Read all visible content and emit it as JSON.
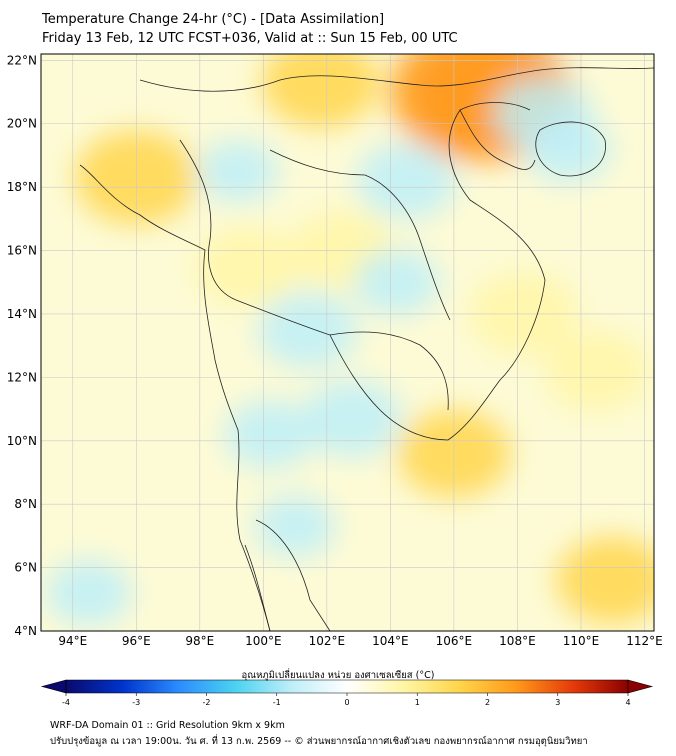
{
  "title_line1": "Temperature Change 24-hr (°C) - [Data Assimilation]",
  "title_line2": "Friday 13 Feb, 12 UTC FCST+036, Valid at :: Sun 15 Feb, 00 UTC",
  "lat_labels": [
    "4°N",
    "6°N",
    "8°N",
    "10°N",
    "12°N",
    "14°N",
    "16°N",
    "18°N",
    "20°N",
    "22°N"
  ],
  "lat_values": [
    4,
    6,
    8,
    10,
    12,
    14,
    16,
    18,
    20,
    22
  ],
  "lon_labels": [
    "94°E",
    "96°E",
    "98°E",
    "100°E",
    "102°E",
    "104°E",
    "106°E",
    "108°E",
    "110°E",
    "112°E"
  ],
  "lon_values": [
    94,
    96,
    98,
    100,
    102,
    104,
    106,
    108,
    110,
    112
  ],
  "map_extent": {
    "lon_min": 93,
    "lon_max": 112.3,
    "lat_min": 4,
    "lat_max": 22.2
  },
  "colorbar": {
    "label": "อุณหภูมิเปลี่ยนแปลง หน่วย องศาเซลเซียส (°C)",
    "ticks": [
      "-4",
      "-3",
      "-2",
      "-1",
      "0",
      "1",
      "2",
      "3",
      "4"
    ],
    "tick_values": [
      -4,
      -3,
      -2,
      -1,
      0,
      1,
      2,
      3,
      4
    ],
    "range": [
      -4,
      4
    ],
    "colors": [
      "#0a0a6e",
      "#0033cc",
      "#2b8cff",
      "#4ad2f0",
      "#bdeef8",
      "#ffffff",
      "#fff6a6",
      "#ffd54a",
      "#ff9a1a",
      "#e63c0a",
      "#8b0000"
    ]
  },
  "footer_line1": "WRF-DA Domain 01 :: Grid Resolution 9km x 9km",
  "footer_line2": "ปรับปรุงข้อมูล ณ เวลา 19:00น. วัน ศ. ที่ 13 ก.พ. 2569 -- © ส่วนพยากรณ์อากาศเชิงตัวเลข กองพยากรณ์อากาศ กรมอุตุนิยมวิทยา",
  "field_anomalies": [
    {
      "lon": 106.8,
      "lat": 21.0,
      "value": 2.6
    },
    {
      "lon": 107.3,
      "lat": 20.8,
      "value": 2.2
    },
    {
      "lon": 96.0,
      "lat": 18.3,
      "value": 1.4
    },
    {
      "lon": 101.8,
      "lat": 21.3,
      "value": 1.3
    },
    {
      "lon": 108.2,
      "lat": 14.0,
      "value": 1.1
    },
    {
      "lon": 106.0,
      "lat": 9.6,
      "value": 1.2
    },
    {
      "lon": 111.0,
      "lat": 5.6,
      "value": 1.2
    },
    {
      "lon": 99.5,
      "lat": 15.5,
      "value": 1.0
    },
    {
      "lon": 102.5,
      "lat": 16.0,
      "value": 1.0
    },
    {
      "lon": 110.5,
      "lat": 12.2,
      "value": 1.0
    },
    {
      "lon": 104.5,
      "lat": 18.2,
      "value": -0.9
    },
    {
      "lon": 101.4,
      "lat": 13.5,
      "value": -0.9
    },
    {
      "lon": 102.8,
      "lat": 10.7,
      "value": -0.9
    },
    {
      "lon": 100.2,
      "lat": 10.2,
      "value": -0.7
    },
    {
      "lon": 108.8,
      "lat": 20.3,
      "value": -0.9
    },
    {
      "lon": 109.6,
      "lat": 19.2,
      "value": -0.6
    },
    {
      "lon": 99.2,
      "lat": 18.5,
      "value": -0.5
    },
    {
      "lon": 94.5,
      "lat": 5.2,
      "value": -0.6
    },
    {
      "lon": 101.0,
      "lat": 7.3,
      "value": -0.5
    },
    {
      "lon": 104.2,
      "lat": 15.0,
      "value": -0.6
    }
  ]
}
